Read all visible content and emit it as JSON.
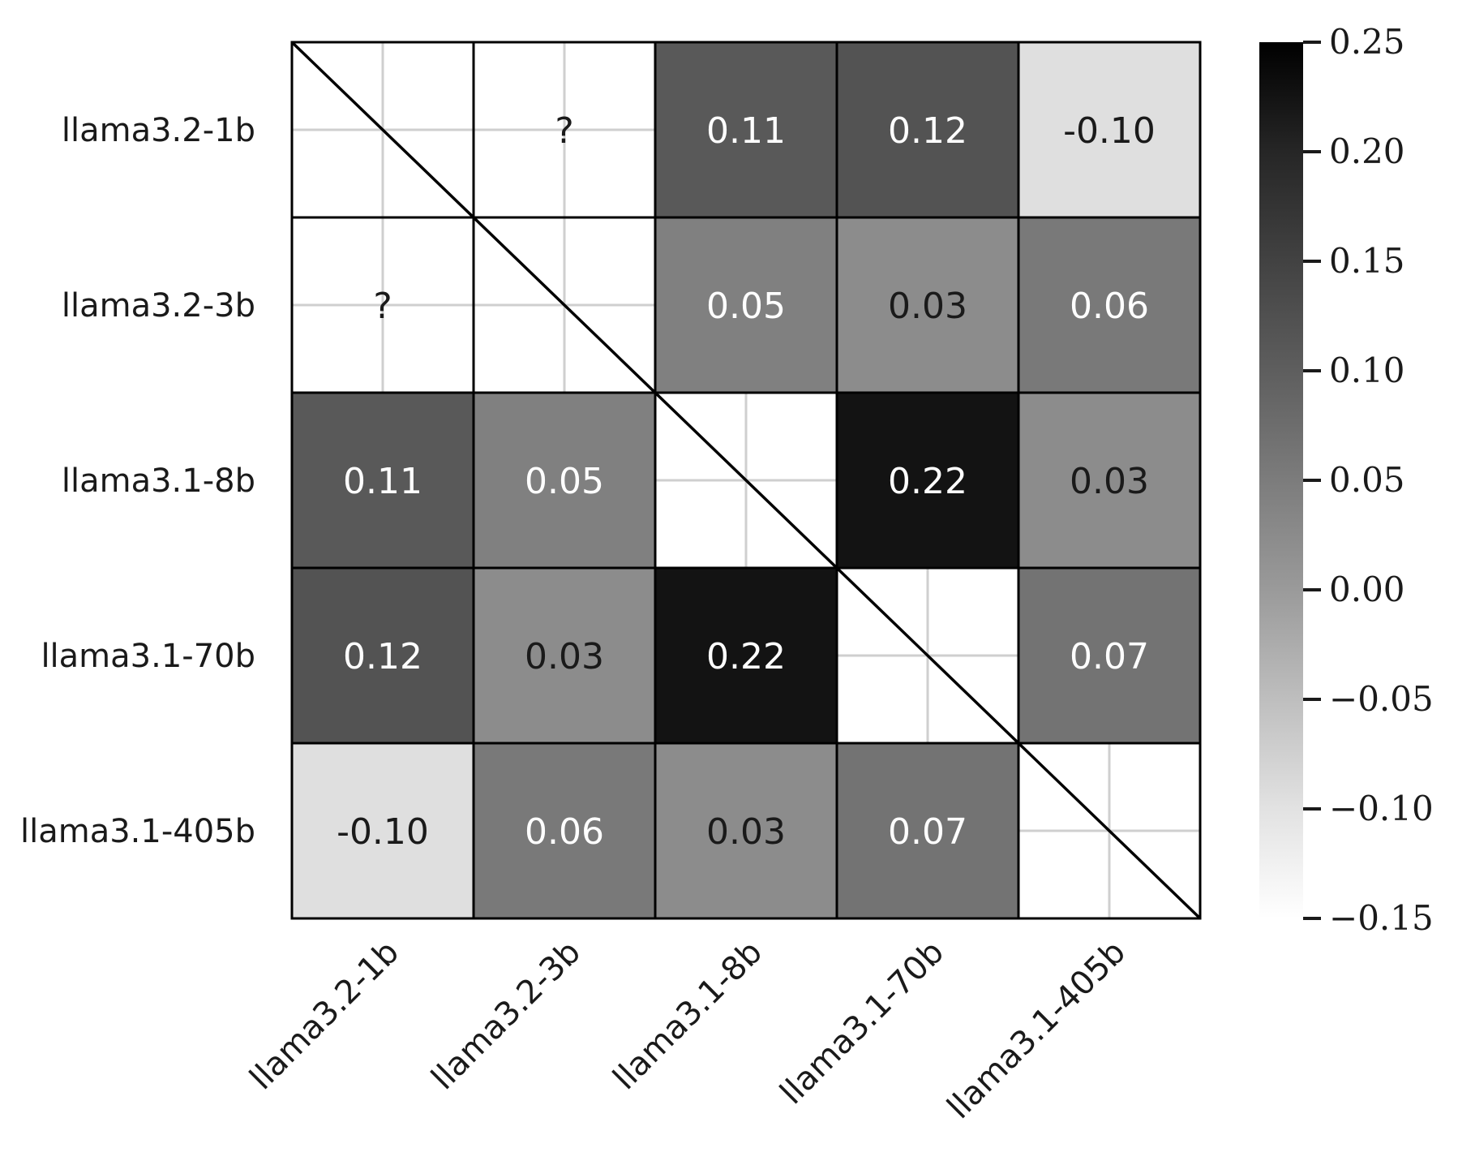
{
  "chart_data": {
    "type": "heatmap",
    "title": "",
    "xlabel": "",
    "ylabel": "",
    "rows": [
      "llama3.2-1b",
      "llama3.2-3b",
      "llama3.1-8b",
      "llama3.1-70b",
      "llama3.1-405b"
    ],
    "columns": [
      "llama3.2-1b",
      "llama3.2-3b",
      "llama3.1-8b",
      "llama3.1-70b",
      "llama3.1-405b"
    ],
    "values": [
      [
        null,
        "?",
        0.11,
        0.12,
        -0.1
      ],
      [
        "?",
        null,
        0.05,
        0.03,
        0.06
      ],
      [
        0.11,
        0.05,
        null,
        0.22,
        0.03
      ],
      [
        0.12,
        0.03,
        0.22,
        null,
        0.07
      ],
      [
        -0.1,
        0.06,
        0.03,
        0.07,
        null
      ]
    ],
    "unknown_marker": "?",
    "colorbar": {
      "range": [
        -0.15,
        0.25
      ],
      "ticks": [
        "0.25",
        "0.20",
        "0.15",
        "0.10",
        "0.05",
        "0.00",
        "−0.05",
        "−0.10",
        "−0.15"
      ],
      "tick_values": [
        0.25,
        0.2,
        0.15,
        0.1,
        0.05,
        0.0,
        -0.05,
        -0.1,
        -0.15
      ],
      "cmap": "greys (light = low, dark = high)"
    },
    "diagonal": "masked with a diagonal line"
  }
}
